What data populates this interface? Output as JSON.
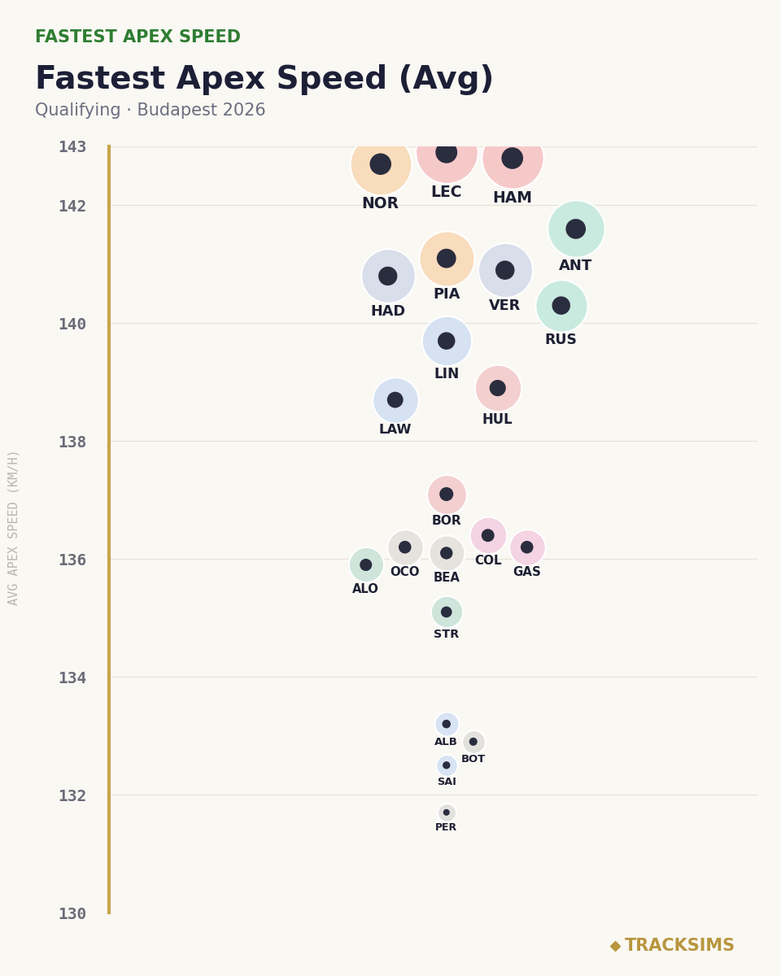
{
  "chart_data": {
    "type": "scatter",
    "kicker": "FASTEST APEX SPEED",
    "title": "Fastest Apex Speed (Avg)",
    "subtitle": "Qualifying · Budapest 2026",
    "y_label": "AVG APEX SPEED (KM/H)",
    "brand": "TRACKSIMS",
    "categories": [
      "HAM",
      "LEC",
      "NOR",
      "ANT",
      "PIA",
      "VER",
      "HAD",
      "RUS",
      "LIN",
      "HUL",
      "LAW",
      "BOR",
      "COL",
      "OCO",
      "GAS",
      "BEA",
      "ALO",
      "STR",
      "ALB",
      "BOT",
      "SAI",
      "PER"
    ],
    "values": [
      142.8,
      142.9,
      142.7,
      141.6,
      141.1,
      140.9,
      140.8,
      140.3,
      139.7,
      138.9,
      138.7,
      137.1,
      136.4,
      136.2,
      136.2,
      136.1,
      135.9,
      135.1,
      133.2,
      132.9,
      132.5,
      131.7
    ],
    "colors": [
      "#f6c9c9",
      "#f6c9c9",
      "#f8dcbc",
      "#c9eadf",
      "#f8dcbc",
      "#d8deea",
      "#d8deea",
      "#c9eadf",
      "#d6e2f2",
      "#f3cfcf",
      "#d6e2f2",
      "#f3cfcf",
      "#f4d3e3",
      "#e6e3df",
      "#f4d3e3",
      "#e6e3df",
      "#cfe5dc",
      "#cfe5dc",
      "#d8e4f3",
      "#e3e1de",
      "#d8e4f3",
      "#e3e1de"
    ],
    "ylim": [
      130,
      143
    ],
    "yticks": [
      130,
      132,
      134,
      136,
      138,
      140,
      142,
      143
    ],
    "grid": true,
    "tick_labels": "y"
  }
}
